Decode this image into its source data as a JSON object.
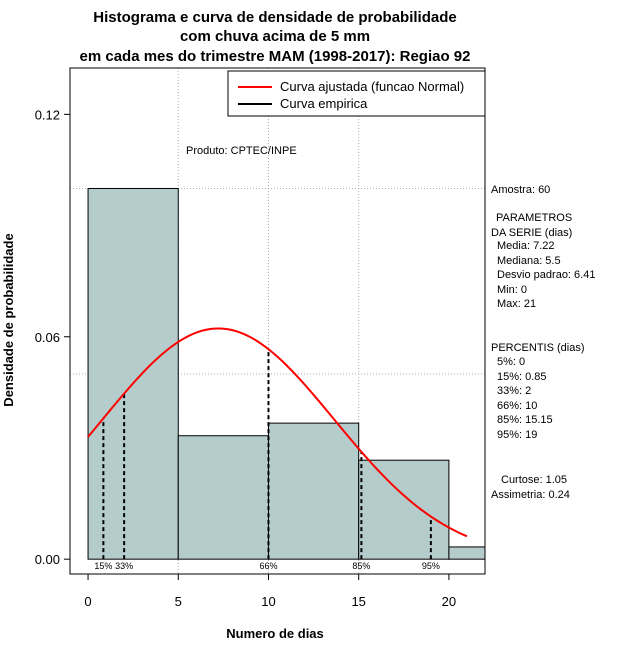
{
  "chart_data": {
    "type": "histogram",
    "title": [
      "Histograma e curva de densidade de probabilidade",
      "com chuva acima de 5 mm",
      "em cada mes do trimestre MAM (1998-2017): Regiao 92"
    ],
    "xlabel": "Numero de dias",
    "ylabel": "Densidade de probabilidade",
    "xlim": [
      -1,
      22
    ],
    "ylim": [
      -0.004,
      0.1325
    ],
    "x_ticks": [
      0,
      5,
      10,
      15,
      20
    ],
    "y_ticks": [
      0.0,
      0.06,
      0.12
    ],
    "y_tick_labels": [
      "0.00",
      "0.06",
      "0.12"
    ],
    "x_grid": [
      5,
      10,
      15
    ],
    "y_grid": [
      0.05,
      0.1
    ],
    "bins": [
      {
        "from": 0,
        "to": 5,
        "density": 0.1
      },
      {
        "from": 5,
        "to": 10,
        "density": 0.0333
      },
      {
        "from": 10,
        "to": 15,
        "density": 0.0367
      },
      {
        "from": 15,
        "to": 20,
        "density": 0.0267
      },
      {
        "from": 20,
        "to": 22,
        "density": 0.0033
      }
    ],
    "bar_color": "#b4cccc",
    "curve_color": "#ff0000",
    "normal_fit": {
      "mean": 7.22,
      "sd": 6.41,
      "x_from": 0,
      "x_to": 21
    },
    "percentile_markers": [
      {
        "x": 0.85,
        "label": "15%"
      },
      {
        "x": 2,
        "label": "33%"
      },
      {
        "x": 10,
        "label": "66%"
      },
      {
        "x": 15.15,
        "label": "85%"
      },
      {
        "x": 19,
        "label": "95%"
      }
    ],
    "legend": [
      {
        "label": "Curva ajustada (funcao Normal)",
        "color": "#ff0000"
      },
      {
        "label": "Curva empirica",
        "color": "#000000"
      }
    ],
    "annotation": "Produto: CPTEC/INPE"
  },
  "stats_panel": {
    "sample": "Amostra: 60",
    "params_title": "PARAMETROS",
    "params_subtitle": "DA SERIE (dias)",
    "params": [
      "Media: 7.22",
      "Mediana: 5.5",
      "Desvio padrao: 6.41",
      "Min: 0",
      "Max: 21"
    ],
    "percentiles_title": "PERCENTIS (dias)",
    "percentiles": [
      "5%: 0",
      "15%: 0.85",
      "33%: 2",
      "66%: 10",
      "85%: 15.15",
      "95%: 19"
    ],
    "kurtosis": "Curtose: 1.05",
    "skewness": "Assimetria: 0.24"
  }
}
